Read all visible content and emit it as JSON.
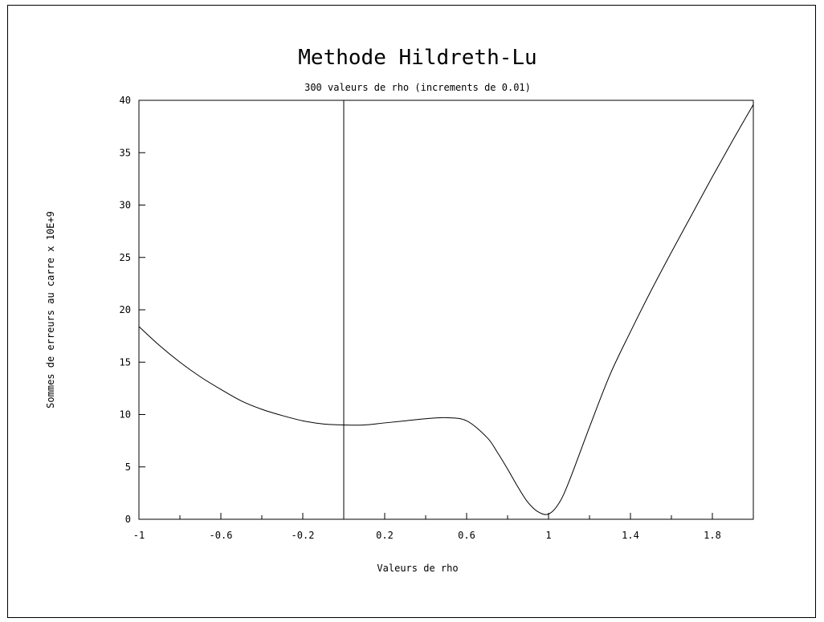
{
  "chart_data": {
    "type": "line",
    "title": "Methode Hildreth-Lu",
    "subtitle": "300 valeurs de rho (increments de 0.01)",
    "xlabel": "Valeurs de rho",
    "ylabel": "Sommes de erreurs au carre x 10E+9",
    "xlim": [
      -1,
      2
    ],
    "ylim": [
      0,
      40
    ],
    "x_ticks": [
      -1,
      -0.6,
      -0.2,
      0.2,
      0.6,
      1,
      1.4,
      1.8
    ],
    "x_tick_labels": [
      "-1",
      "-0.6",
      "-0.2",
      "0.2",
      "0.6",
      "1",
      "1.4",
      "1.8"
    ],
    "y_ticks": [
      0,
      5,
      10,
      15,
      20,
      25,
      30,
      35,
      40
    ],
    "y_tick_labels": [
      "0",
      "5",
      "10",
      "15",
      "20",
      "25",
      "30",
      "35",
      "40"
    ],
    "vertical_reference_line_x": 0,
    "grid": false,
    "legend": "none",
    "series": [
      {
        "x": [
          -1,
          -0.9,
          -0.8,
          -0.7,
          -0.6,
          -0.5,
          -0.4,
          -0.3,
          -0.2,
          -0.1,
          0,
          0.1,
          0.2,
          0.3,
          0.4,
          0.5,
          0.6,
          0.7,
          0.75,
          0.8,
          0.85,
          0.9,
          0.95,
          1.0,
          1.05,
          1.1,
          1.2,
          1.3,
          1.4,
          1.5,
          1.6,
          1.7,
          1.8,
          1.9,
          2.0
        ],
        "y": [
          18.4,
          16.6,
          15.0,
          13.6,
          12.4,
          11.3,
          10.5,
          9.9,
          9.4,
          9.1,
          9.0,
          9.0,
          9.2,
          9.4,
          9.6,
          9.7,
          9.4,
          7.8,
          6.4,
          4.8,
          3.1,
          1.6,
          0.7,
          0.5,
          1.5,
          3.6,
          8.8,
          13.8,
          17.9,
          21.8,
          25.5,
          29.1,
          32.7,
          36.2,
          39.6
        ]
      }
    ]
  }
}
